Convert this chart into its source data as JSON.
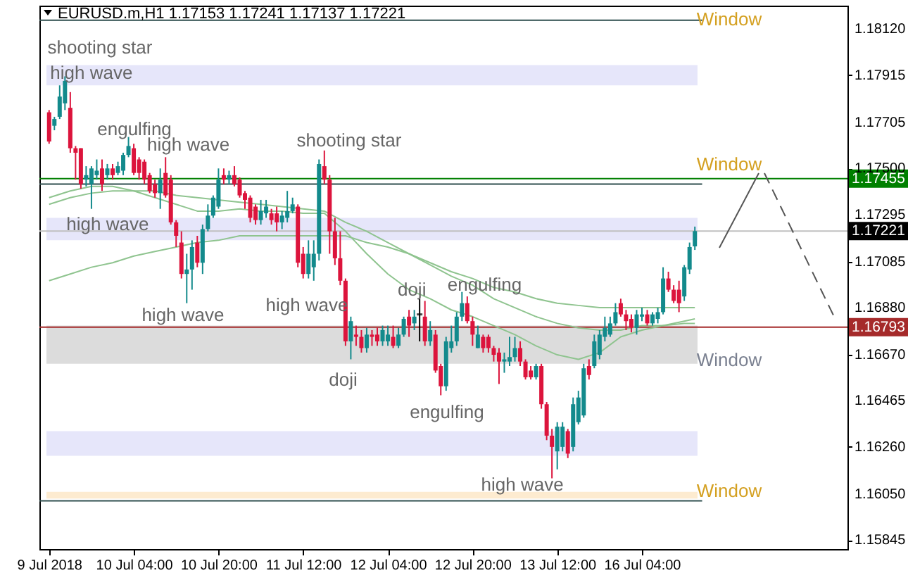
{
  "chart_data": {
    "type": "candlestick",
    "title": "EURUSD.m,H1  1.17153 1.17241 1.17137 1.17221",
    "categories": [
      "9 Jul 2018",
      null,
      null,
      null,
      null,
      null,
      null,
      null,
      null,
      null,
      null,
      null,
      null,
      null,
      null,
      null,
      "10 Jul 04:00",
      null,
      null,
      null,
      null,
      null,
      null,
      null,
      null,
      null,
      null,
      null,
      null,
      null,
      null,
      null,
      "10 Jul 20:00",
      null,
      null,
      null,
      null,
      null,
      null,
      null,
      null,
      null,
      null,
      null,
      null,
      null,
      null,
      null,
      "11 Jul 12:00",
      null,
      null,
      null,
      null,
      null,
      null,
      null,
      null,
      null,
      null,
      null,
      null,
      null,
      null,
      null,
      "12 Jul 04:00",
      null,
      null,
      null,
      null,
      null,
      null,
      null,
      null,
      null,
      null,
      null,
      null,
      null,
      null,
      null,
      "12 Jul 20:00",
      null,
      null,
      null,
      null,
      null,
      null,
      null,
      null,
      null,
      null,
      null,
      null,
      null,
      null,
      null,
      "13 Jul 12:00",
      null,
      null,
      null,
      null,
      null,
      null,
      null,
      null,
      null,
      null,
      null,
      null,
      null,
      null,
      null,
      "16 Jul 04:00",
      null,
      null,
      null,
      null,
      null,
      null,
      null,
      null,
      null,
      null,
      null,
      null,
      null,
      null,
      null,
      null,
      null,
      null,
      null,
      null,
      null,
      null,
      null,
      null,
      null,
      null,
      null,
      null,
      null,
      null,
      null,
      null,
      null,
      null,
      null,
      null,
      null
    ],
    "ohlc": [
      [
        1.1775,
        1.1776,
        1.1761,
        1.1762
      ],
      [
        1.1769,
        1.1773,
        1.1767,
        1.1772
      ],
      [
        1.1773,
        1.1787,
        1.1772,
        1.1782
      ],
      [
        1.1779,
        1.1791,
        1.1776,
        1.1789
      ],
      [
        1.1777,
        1.1784,
        1.1757,
        1.1759
      ],
      [
        1.1759,
        1.176,
        1.1745,
        1.1757
      ],
      [
        1.1759,
        1.1759,
        1.1741,
        1.1743
      ],
      [
        1.1745,
        1.1751,
        1.1742,
        1.1747
      ],
      [
        1.1743,
        1.1751,
        1.1732,
        1.175
      ],
      [
        1.1747,
        1.1754,
        1.1745,
        1.1749
      ],
      [
        1.175,
        1.1754,
        1.174,
        1.1743
      ],
      [
        1.1747,
        1.1752,
        1.1745,
        1.175
      ],
      [
        1.175,
        1.1752,
        1.1745,
        1.1747
      ],
      [
        1.1748,
        1.1753,
        1.1747,
        1.1751
      ],
      [
        1.1749,
        1.1757,
        1.1747,
        1.1756
      ],
      [
        1.1756,
        1.1764,
        1.1755,
        1.176
      ],
      [
        1.1759,
        1.1761,
        1.1747,
        1.1748
      ],
      [
        1.1754,
        1.1755,
        1.1745,
        1.1748
      ],
      [
        1.1753,
        1.1754,
        1.1743,
        1.1745
      ],
      [
        1.1747,
        1.1748,
        1.1739,
        1.174
      ],
      [
        1.1743,
        1.1745,
        1.1737,
        1.1739
      ],
      [
        1.1739,
        1.175,
        1.1732,
        1.1745
      ],
      [
        1.1748,
        1.1755,
        1.1737,
        1.1738
      ],
      [
        1.1745,
        1.1747,
        1.1725,
        1.1726
      ],
      [
        1.1726,
        1.1727,
        1.1715,
        1.172
      ],
      [
        1.1717,
        1.1722,
        1.1701,
        1.1703
      ],
      [
        1.1703,
        1.1712,
        1.169,
        1.1705
      ],
      [
        1.1705,
        1.1718,
        1.1696,
        1.1715
      ],
      [
        1.1717,
        1.172,
        1.1706,
        1.1708
      ],
      [
        1.1708,
        1.1725,
        1.1703,
        1.1723
      ],
      [
        1.1723,
        1.1734,
        1.1722,
        1.1729
      ],
      [
        1.1729,
        1.1738,
        1.1728,
        1.1737
      ],
      [
        1.1733,
        1.175,
        1.1732,
        1.1745
      ],
      [
        1.1747,
        1.175,
        1.1743,
        1.1745
      ],
      [
        1.1745,
        1.1749,
        1.1743,
        1.1747
      ],
      [
        1.1747,
        1.1751,
        1.1742,
        1.1743
      ],
      [
        1.1745,
        1.1746,
        1.1737,
        1.1738
      ],
      [
        1.1739,
        1.174,
        1.1732,
        1.1736
      ],
      [
        1.1737,
        1.1738,
        1.1726,
        1.1728
      ],
      [
        1.1733,
        1.1734,
        1.1725,
        1.1727
      ],
      [
        1.1727,
        1.1736,
        1.1725,
        1.1731
      ],
      [
        1.173,
        1.1736,
        1.1728,
        1.1733
      ],
      [
        1.173,
        1.1732,
        1.1725,
        1.1727
      ],
      [
        1.173,
        1.1733,
        1.1722,
        1.1726
      ],
      [
        1.1726,
        1.1731,
        1.1723,
        1.1729
      ],
      [
        1.1728,
        1.174,
        1.1726,
        1.1731
      ],
      [
        1.1731,
        1.1737,
        1.173,
        1.1734
      ],
      [
        1.1733,
        1.1734,
        1.1706,
        1.1708
      ],
      [
        1.1712,
        1.1715,
        1.1701,
        1.1703
      ],
      [
        1.1703,
        1.1718,
        1.1701,
        1.1712
      ],
      [
        1.1706,
        1.1718,
        1.17,
        1.1712
      ],
      [
        1.1712,
        1.1754,
        1.1709,
        1.1752
      ],
      [
        1.1751,
        1.1758,
        1.1743,
        1.1745
      ],
      [
        1.1745,
        1.1747,
        1.1712,
        1.1722
      ],
      [
        1.1722,
        1.1728,
        1.1707,
        1.171
      ],
      [
        1.171,
        1.1722,
        1.1698,
        1.17
      ],
      [
        1.17,
        1.1701,
        1.1671,
        1.1673
      ],
      [
        1.1673,
        1.1684,
        1.1665,
        1.1682
      ],
      [
        1.1676,
        1.168,
        1.1671,
        1.1675
      ],
      [
        1.1675,
        1.1678,
        1.1668,
        1.167
      ],
      [
        1.167,
        1.1679,
        1.1668,
        1.1676
      ],
      [
        1.1676,
        1.1678,
        1.1671,
        1.1675
      ],
      [
        1.1676,
        1.1679,
        1.1671,
        1.1673
      ],
      [
        1.1673,
        1.168,
        1.1671,
        1.1678
      ],
      [
        1.1673,
        1.168,
        1.1671,
        1.1676
      ],
      [
        1.1675,
        1.168,
        1.167,
        1.1671
      ],
      [
        1.1671,
        1.1679,
        1.167,
        1.1676
      ],
      [
        1.1676,
        1.1684,
        1.1675,
        1.1683
      ],
      [
        1.1684,
        1.1687,
        1.1675,
        1.168
      ],
      [
        1.1681,
        1.1687,
        1.1678,
        1.1684
      ],
      [
        1.1685,
        1.1692,
        1.1673,
        1.1685
      ],
      [
        1.1684,
        1.1691,
        1.1671,
        1.1673
      ],
      [
        1.1673,
        1.1682,
        1.1671,
        1.1678
      ],
      [
        1.1676,
        1.1678,
        1.1659,
        1.166
      ],
      [
        1.1662,
        1.1663,
        1.1649,
        1.1653
      ],
      [
        1.1653,
        1.1675,
        1.1651,
        1.1673
      ],
      [
        1.167,
        1.168,
        1.1668,
        1.1673
      ],
      [
        1.1673,
        1.1686,
        1.1671,
        1.1684
      ],
      [
        1.1684,
        1.1695,
        1.1682,
        1.169
      ],
      [
        1.169,
        1.1693,
        1.1681,
        1.1682
      ],
      [
        1.1682,
        1.1684,
        1.1671,
        1.1676
      ],
      [
        1.167,
        1.168,
        1.167,
        1.1676
      ],
      [
        1.1675,
        1.1676,
        1.1668,
        1.167
      ],
      [
        1.1675,
        1.1676,
        1.1668,
        1.167
      ],
      [
        1.167,
        1.1671,
        1.1664,
        1.1667
      ],
      [
        1.1668,
        1.167,
        1.1654,
        1.1664
      ],
      [
        1.1664,
        1.1668,
        1.1659,
        1.1665
      ],
      [
        1.1664,
        1.1675,
        1.1662,
        1.1666
      ],
      [
        1.1666,
        1.1675,
        1.1664,
        1.167
      ],
      [
        1.167,
        1.1673,
        1.1662,
        1.1664
      ],
      [
        1.1664,
        1.1665,
        1.1656,
        1.1657
      ],
      [
        1.166,
        1.1662,
        1.1656,
        1.1657
      ],
      [
        1.1657,
        1.1663,
        1.1656,
        1.1662
      ],
      [
        1.1662,
        1.1663,
        1.1643,
        1.1645
      ],
      [
        1.1645,
        1.1646,
        1.1629,
        1.1631
      ],
      [
        1.1631,
        1.1634,
        1.1612,
        1.1626
      ],
      [
        1.1624,
        1.1637,
        1.1616,
        1.1635
      ],
      [
        1.1626,
        1.1637,
        1.1624,
        1.1635
      ],
      [
        1.1633,
        1.1634,
        1.1621,
        1.1623
      ],
      [
        1.1626,
        1.1648,
        1.1624,
        1.1645
      ],
      [
        1.1637,
        1.1651,
        1.1636,
        1.1648
      ],
      [
        1.164,
        1.1663,
        1.1639,
        1.1661
      ],
      [
        1.1662,
        1.1665,
        1.1656,
        1.1658
      ],
      [
        1.1662,
        1.1676,
        1.1661,
        1.1673
      ],
      [
        1.1667,
        1.1678,
        1.1665,
        1.1676
      ],
      [
        1.1675,
        1.1684,
        1.1673,
        1.1679
      ],
      [
        1.1676,
        1.1684,
        1.1675,
        1.1681
      ],
      [
        1.1681,
        1.169,
        1.168,
        1.1686
      ],
      [
        1.169,
        1.1692,
        1.1684,
        1.1685
      ],
      [
        1.1685,
        1.1687,
        1.1678,
        1.1682
      ],
      [
        1.1683,
        1.1685,
        1.1677,
        1.1679
      ],
      [
        1.1679,
        1.1687,
        1.1676,
        1.1685
      ],
      [
        1.1684,
        1.1688,
        1.1682,
        1.1685
      ],
      [
        1.1685,
        1.1687,
        1.168,
        1.1681
      ],
      [
        1.1681,
        1.1686,
        1.168,
        1.1685
      ],
      [
        1.1683,
        1.1688,
        1.1681,
        1.1686
      ],
      [
        1.1686,
        1.1706,
        1.1685,
        1.1701
      ],
      [
        1.1701,
        1.1704,
        1.1695,
        1.1696
      ],
      [
        1.1696,
        1.1698,
        1.169,
        1.1691
      ],
      [
        1.1696,
        1.17,
        1.1686,
        1.169
      ],
      [
        1.1693,
        1.1707,
        1.1691,
        1.1706
      ],
      [
        1.1705,
        1.1717,
        1.1703,
        1.1715
      ],
      [
        1.17153,
        1.17241,
        1.17137,
        1.17221
      ],
      null,
      null,
      null,
      null,
      null,
      null,
      null,
      null,
      null,
      null,
      null,
      null,
      null,
      null,
      null,
      null,
      null,
      null,
      null,
      null,
      null,
      null,
      null,
      null,
      null,
      null,
      null
    ],
    "series": [
      {
        "type": "line",
        "color": "#8fc48f",
        "values": [
          1.1737,
          null,
          null,
          null,
          1.174,
          null,
          null,
          null,
          1.1742,
          null,
          null,
          null,
          1.1742,
          null,
          null,
          null,
          1.174,
          null,
          null,
          null,
          1.1737,
          null,
          null,
          null,
          1.1734,
          null,
          null,
          null,
          1.1731,
          null,
          null,
          null,
          1.1731,
          null,
          null,
          null,
          1.1732,
          null,
          null,
          null,
          1.1731,
          null,
          null,
          null,
          1.1731,
          null,
          null,
          null,
          1.173,
          null,
          null,
          null,
          1.173,
          null,
          null,
          null,
          1.1722,
          null,
          null,
          null,
          1.1712,
          null,
          null,
          null,
          1.1703,
          null,
          null,
          null,
          1.1696,
          null,
          null,
          null,
          1.1692,
          null,
          null,
          null,
          1.1687,
          null,
          null,
          null,
          1.1684,
          null,
          null,
          null,
          1.168,
          null,
          null,
          null,
          1.1676,
          null,
          null,
          null,
          1.1671,
          null,
          null,
          null,
          1.1667,
          null,
          null,
          null,
          1.1665,
          null,
          null,
          null,
          1.1668,
          null,
          null,
          null,
          1.1675,
          null,
          null,
          null,
          1.1678,
          null,
          null,
          null,
          1.168,
          null,
          null,
          null,
          1.1682,
          null,
          1.1683,
          null,
          null,
          null,
          null,
          null,
          null,
          null,
          null,
          null,
          null,
          null,
          null,
          null,
          null,
          null,
          null,
          null,
          null,
          null,
          null,
          null,
          null,
          null,
          null,
          null,
          null,
          null
        ]
      },
      {
        "type": "line",
        "color": "#8fc48f",
        "values": [
          1.1734,
          null,
          null,
          null,
          1.1737,
          null,
          null,
          null,
          1.1739,
          null,
          null,
          null,
          1.174,
          null,
          null,
          null,
          1.174,
          null,
          null,
          null,
          1.174,
          null,
          null,
          null,
          1.1738,
          null,
          null,
          null,
          1.1737,
          null,
          null,
          null,
          1.1736,
          null,
          null,
          null,
          1.1735,
          null,
          null,
          null,
          1.1734,
          null,
          null,
          null,
          1.1733,
          null,
          null,
          null,
          1.1732,
          null,
          null,
          null,
          1.1731,
          null,
          null,
          null,
          1.1726,
          null,
          null,
          null,
          1.1722,
          null,
          null,
          null,
          1.1717,
          null,
          null,
          null,
          1.1712,
          null,
          null,
          null,
          1.1707,
          null,
          null,
          null,
          1.1702,
          null,
          null,
          null,
          1.1698,
          null,
          null,
          null,
          1.1692,
          null,
          null,
          null,
          1.1688,
          null,
          null,
          null,
          1.1684,
          null,
          null,
          null,
          1.1681,
          null,
          null,
          null,
          1.1679,
          null,
          null,
          null,
          1.1678,
          null,
          null,
          null,
          1.1678,
          null,
          null,
          null,
          1.168,
          null,
          null,
          null,
          1.168,
          null,
          null,
          null,
          1.1681,
          null,
          1.1681,
          null,
          null,
          null,
          null,
          null,
          null,
          null,
          null,
          null,
          null,
          null,
          null,
          null,
          null,
          null,
          null,
          null,
          null,
          null,
          null,
          null,
          null,
          null,
          null,
          null,
          null,
          null
        ]
      },
      {
        "type": "line",
        "color": "#8fc48f",
        "values": [
          1.17,
          null,
          null,
          null,
          1.1703,
          null,
          null,
          null,
          1.1706,
          null,
          null,
          null,
          1.1708,
          null,
          null,
          null,
          1.1711,
          null,
          null,
          null,
          1.1713,
          null,
          null,
          null,
          1.1715,
          null,
          null,
          null,
          1.1717,
          null,
          null,
          null,
          1.1718,
          null,
          null,
          null,
          1.172,
          null,
          null,
          null,
          1.172,
          null,
          null,
          null,
          1.172,
          null,
          null,
          null,
          1.172,
          null,
          null,
          null,
          1.172,
          null,
          null,
          null,
          1.172,
          null,
          null,
          null,
          1.1717,
          null,
          null,
          null,
          1.1715,
          null,
          null,
          null,
          1.1712,
          null,
          null,
          null,
          1.1708,
          null,
          null,
          null,
          1.1704,
          null,
          null,
          null,
          1.1701,
          null,
          null,
          null,
          1.1697,
          null,
          null,
          null,
          1.1695,
          null,
          null,
          null,
          1.1692,
          null,
          null,
          null,
          1.169,
          null,
          null,
          null,
          1.1689,
          null,
          null,
          null,
          1.1688,
          null,
          null,
          null,
          1.1688,
          null,
          null,
          null,
          1.1688,
          null,
          null,
          null,
          1.1688,
          null,
          null,
          null,
          1.1688,
          null,
          1.1688,
          null,
          null,
          null,
          null,
          null,
          null,
          null,
          null,
          null,
          null,
          null,
          null,
          null,
          null,
          null,
          null,
          null,
          null,
          null,
          null,
          null,
          null,
          null,
          null,
          null,
          null,
          null
        ]
      }
    ],
    "ylim": [
      1.15805,
      1.18225
    ],
    "yticks": [
      {
        "value": 1.1812,
        "label": "1.18120"
      },
      {
        "value": 1.17915,
        "label": "1.17915"
      },
      {
        "value": 1.17705,
        "label": "1.17705"
      },
      {
        "value": 1.175,
        "label": "1.17500"
      },
      {
        "value": 1.17295,
        "label": "1.17295"
      },
      {
        "value": 1.17085,
        "label": "1.17085"
      },
      {
        "value": 1.1688,
        "label": "1.16880"
      },
      {
        "value": 1.1667,
        "label": "1.16670"
      },
      {
        "value": 1.16465,
        "label": "1.16465"
      },
      {
        "value": 1.1626,
        "label": "1.16260"
      },
      {
        "value": 1.1605,
        "label": "1.16050"
      },
      {
        "value": 1.15845,
        "label": "1.15845"
      }
    ],
    "bands": [
      {
        "axis": "y",
        "from": 1.1787,
        "to": 1.1796,
        "color": "#e6e6fa"
      },
      {
        "axis": "y",
        "from": 1.1718,
        "to": 1.1728,
        "color": "#e6e6fa"
      },
      {
        "axis": "y",
        "from": 1.1663,
        "to": 1.168,
        "color": "#dcdcdc"
      },
      {
        "axis": "y",
        "from": 1.1622,
        "to": 1.1633,
        "color": "#e6e6fa"
      },
      {
        "axis": "y",
        "from": 1.1603,
        "to": 1.1606,
        "color": "#fdebd0"
      }
    ],
    "ref_lines": [
      {
        "axis": "y",
        "value": 1.1816,
        "color": "#2f4f4f"
      },
      {
        "axis": "y",
        "value": 1.1743,
        "color": "#2f4f4f"
      },
      {
        "axis": "y",
        "value": 1.1602,
        "color": "#2f4f4f"
      },
      {
        "axis": "y",
        "value": 1.17455,
        "label": "1.17455",
        "color": "#008000"
      },
      {
        "axis": "y",
        "value": 1.17221,
        "label": "1.17221",
        "color": "#c0c0c0"
      },
      {
        "axis": "y",
        "value": 1.16793,
        "label": "1.16793",
        "color": "#a52a2a"
      }
    ],
    "annotations": [
      "shooting star",
      "high wave",
      "engulfing",
      "high wave",
      "shooting star",
      {
        "text": "high wave",
        "y": 1.1725
      },
      "high wave",
      "high wave",
      {
        "text": "doji",
        "y": 1.1696
      },
      {
        "text": "engulfing",
        "y": 1.1698
      },
      "doji",
      "engulfing",
      {
        "text": "high wave",
        "y": 1.1609
      },
      "Window",
      "Window",
      "Window",
      "Window"
    ]
  }
}
